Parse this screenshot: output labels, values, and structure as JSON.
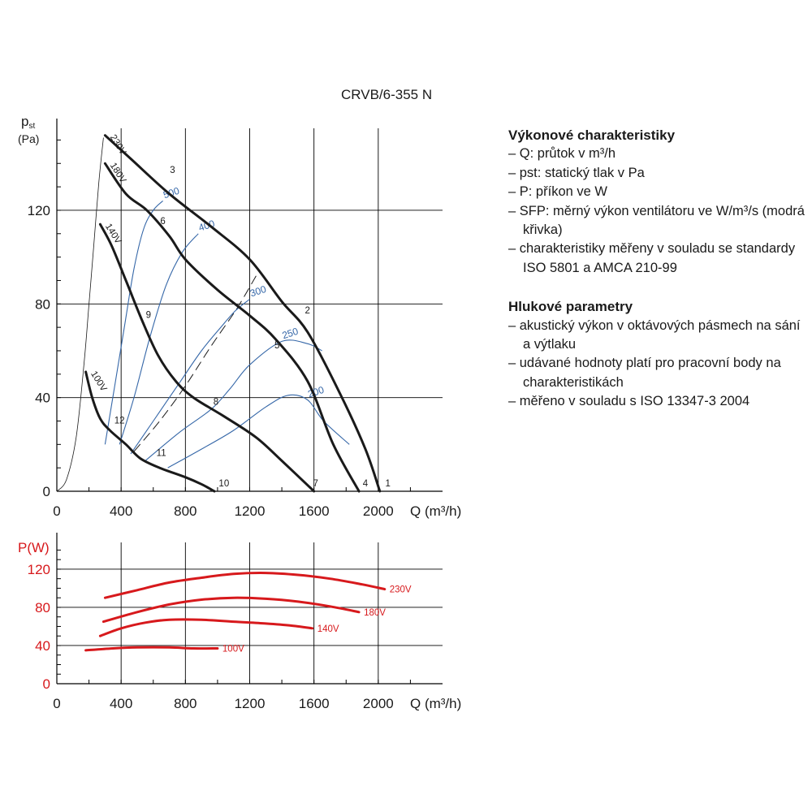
{
  "model_title": "CRVB/6-355 N",
  "legend": {
    "performance_heading": "Výkonové charakteristiky",
    "performance_items": [
      "– Q: průtok v m³/h",
      "– pst: statický tlak v Pa",
      "– P: příkon ve W",
      "– SFP: měrný výkon ventilátoru ve W/m³/s (modrá křivka)",
      "– charakteristiky měřeny v souladu se standardy ISO 5801 a AMCA 210-99"
    ],
    "noise_heading": "Hlukové parametry",
    "noise_items": [
      "– akustický výkon v oktávových pásmech na sání a výtlaku",
      "– udávané hodnoty platí pro pracovní body na charakteristikách",
      "– měřeno v souladu s ISO 13347-3 2004"
    ]
  },
  "colors": {
    "fan_curve": "#1a1a1a",
    "sfp_curve": "#3567a8",
    "power_curve": "#d7191c",
    "grid": "#000000"
  },
  "chart_data": [
    {
      "type": "line",
      "ylabel": "pst",
      "yunit": "(Pa)",
      "xlabel": "Q (m³/h)",
      "xlim": [
        0,
        2400
      ],
      "ylim": [
        0,
        155
      ],
      "xticks": [
        0,
        400,
        800,
        1200,
        1600,
        2000
      ],
      "yticks": [
        0,
        40,
        80,
        120
      ],
      "grid": true,
      "fan_curves": [
        {
          "name": "230V",
          "points": [
            [
              300,
              152
            ],
            [
              460,
              142
            ],
            [
              700,
              127
            ],
            [
              960,
              113
            ],
            [
              1200,
              99
            ],
            [
              1400,
              81
            ],
            [
              1560,
              68
            ],
            [
              1760,
              42
            ],
            [
              1920,
              18
            ],
            [
              2010,
              0
            ]
          ]
        },
        {
          "name": "180V",
          "points": [
            [
              300,
              140
            ],
            [
              430,
              127
            ],
            [
              560,
              120
            ],
            [
              700,
              109
            ],
            [
              800,
              99
            ],
            [
              1000,
              86
            ],
            [
              1200,
              75
            ],
            [
              1360,
              65
            ],
            [
              1560,
              47
            ],
            [
              1720,
              20
            ],
            [
              1880,
              0
            ]
          ]
        },
        {
          "name": "140V",
          "points": [
            [
              270,
              114
            ],
            [
              340,
              105
            ],
            [
              430,
              90
            ],
            [
              530,
              73
            ],
            [
              630,
              58
            ],
            [
              740,
              47
            ],
            [
              850,
              40
            ],
            [
              1040,
              32
            ],
            [
              1240,
              23
            ],
            [
              1400,
              13
            ],
            [
              1600,
              0
            ]
          ]
        },
        {
          "name": "100V",
          "points": [
            [
              180,
              51
            ],
            [
              220,
              40
            ],
            [
              270,
              31
            ],
            [
              330,
              26
            ],
            [
              430,
              20
            ],
            [
              520,
              14
            ],
            [
              640,
              10
            ],
            [
              800,
              6
            ],
            [
              900,
              3
            ],
            [
              980,
              0
            ]
          ]
        }
      ],
      "system_curves": [
        {
          "style": "thin",
          "points": [
            [
              0,
              0
            ],
            [
              60,
              5
            ],
            [
              120,
              23
            ],
            [
              170,
              55
            ],
            [
              200,
              80
            ],
            [
              230,
              105
            ],
            [
              260,
              131
            ],
            [
              290,
              151
            ]
          ]
        },
        {
          "style": "dashed",
          "points": [
            [
              480,
              17
            ],
            [
              640,
              30
            ],
            [
              800,
              45
            ],
            [
              960,
              62
            ],
            [
              1120,
              78
            ],
            [
              1240,
              92
            ]
          ]
        }
      ],
      "sfp_curves": [
        {
          "label": "500",
          "points": [
            [
              300,
              20
            ],
            [
              360,
              45
            ],
            [
              420,
              70
            ],
            [
              480,
              95
            ],
            [
              540,
              112
            ],
            [
              600,
              120
            ],
            [
              660,
              124
            ]
          ]
        },
        {
          "label": "400",
          "points": [
            [
              390,
              20
            ],
            [
              480,
              40
            ],
            [
              580,
              66
            ],
            [
              680,
              88
            ],
            [
              780,
              102
            ],
            [
              880,
              110
            ]
          ]
        },
        {
          "label": "300",
          "points": [
            [
              460,
              16
            ],
            [
              600,
              30
            ],
            [
              760,
              46
            ],
            [
              900,
              60
            ],
            [
              1020,
              70
            ],
            [
              1110,
              77
            ],
            [
              1200,
              82
            ]
          ]
        },
        {
          "label": "250",
          "points": [
            [
              550,
              13
            ],
            [
              760,
              25
            ],
            [
              960,
              35
            ],
            [
              1080,
              44
            ],
            [
              1200,
              54
            ],
            [
              1400,
              64
            ],
            [
              1560,
              63
            ],
            [
              1650,
              60
            ]
          ]
        },
        {
          "label": "200",
          "points": [
            [
              690,
              10
            ],
            [
              900,
              18
            ],
            [
              1100,
              26
            ],
            [
              1300,
              36
            ],
            [
              1440,
              41
            ],
            [
              1560,
              39
            ],
            [
              1660,
              30
            ],
            [
              1820,
              20
            ]
          ]
        }
      ],
      "point_labels": [
        {
          "text": "1",
          "x": 2060,
          "y": 2
        },
        {
          "text": "2",
          "x": 1560,
          "y": 76
        },
        {
          "text": "3",
          "x": 720,
          "y": 136
        },
        {
          "text": "4",
          "x": 1920,
          "y": 2
        },
        {
          "text": "5",
          "x": 1370,
          "y": 61
        },
        {
          "text": "6",
          "x": 660,
          "y": 114
        },
        {
          "text": "7",
          "x": 1610,
          "y": 2
        },
        {
          "text": "8",
          "x": 990,
          "y": 37
        },
        {
          "text": "9",
          "x": 570,
          "y": 74
        },
        {
          "text": "10",
          "x": 1040,
          "y": 2
        },
        {
          "text": "11",
          "x": 650,
          "y": 15
        },
        {
          "text": "12",
          "x": 390,
          "y": 29
        }
      ]
    },
    {
      "type": "line",
      "ylabel": "P(W)",
      "xlabel": "Q (m³/h)",
      "xlim": [
        0,
        2400
      ],
      "ylim": [
        0,
        148
      ],
      "xticks": [
        0,
        400,
        800,
        1200,
        1600,
        2000
      ],
      "yticks": [
        0,
        40,
        80,
        120
      ],
      "grid": true,
      "series": [
        {
          "name": "230V",
          "points": [
            [
              300,
              90
            ],
            [
              500,
              98
            ],
            [
              700,
              106
            ],
            [
              900,
              111
            ],
            [
              1100,
              115
            ],
            [
              1300,
              116
            ],
            [
              1500,
              114
            ],
            [
              1700,
              110
            ],
            [
              1900,
              104
            ],
            [
              2040,
              99
            ]
          ]
        },
        {
          "name": "180V",
          "points": [
            [
              290,
              65
            ],
            [
              500,
              75
            ],
            [
              700,
              83
            ],
            [
              900,
              88
            ],
            [
              1100,
              90
            ],
            [
              1300,
              89
            ],
            [
              1500,
              86
            ],
            [
              1700,
              81
            ],
            [
              1880,
              75
            ]
          ]
        },
        {
          "name": "140V",
          "points": [
            [
              270,
              50
            ],
            [
              400,
              58
            ],
            [
              550,
              64
            ],
            [
              700,
              67
            ],
            [
              900,
              67
            ],
            [
              1100,
              65
            ],
            [
              1300,
              63
            ],
            [
              1450,
              61
            ],
            [
              1590,
              58
            ]
          ]
        },
        {
          "name": "100V",
          "points": [
            [
              180,
              35
            ],
            [
              350,
              37
            ],
            [
              500,
              38
            ],
            [
              700,
              38
            ],
            [
              850,
              37
            ],
            [
              1000,
              37
            ]
          ]
        }
      ]
    }
  ]
}
